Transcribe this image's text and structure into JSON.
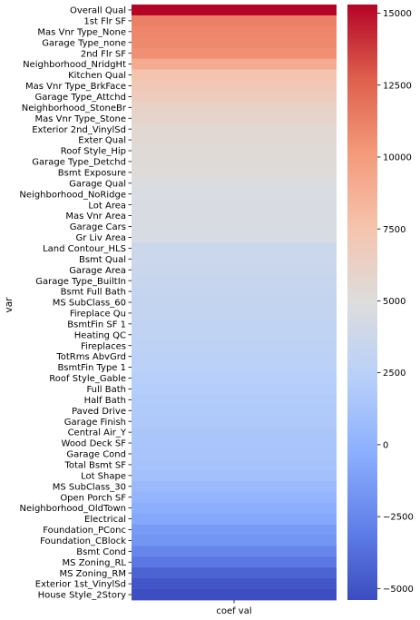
{
  "chart_data": {
    "type": "heatmap",
    "title": "",
    "xlabel": "",
    "ylabel": "var",
    "columns": [
      "coef val"
    ],
    "categories": [
      "Overall Qual",
      "1st Flr SF",
      "Mas Vnr Type_None",
      "Garage Type_none",
      "2nd Flr SF",
      "Neighborhood_NridgHt",
      "Kitchen Qual",
      "Mas Vnr Type_BrkFace",
      "Garage Type_Attchd",
      "Neighborhood_StoneBr",
      "Mas Vnr Type_Stone",
      "Exterior 2nd_VinylSd",
      "Exter Qual",
      "Roof Style_Hip",
      "Garage Type_Detchd",
      "Bsmt Exposure",
      "Garage Qual",
      "Neighborhood_NoRidge",
      "Lot Area",
      "Mas Vnr Area",
      "Garage Cars",
      "Gr Liv Area",
      "Land Contour_HLS",
      "Bsmt Qual",
      "Garage Area",
      "Garage Type_BuiltIn",
      "Bsmt Full Bath",
      "MS SubClass_60",
      "Fireplace Qu",
      "BsmtFin SF 1",
      "Heating QC",
      "Fireplaces",
      "TotRms AbvGrd",
      "BsmtFin Type 1",
      "Roof Style_Gable",
      "Full Bath",
      "Half Bath",
      "Paved Drive",
      "Garage Finish",
      "Central Air_Y",
      "Wood Deck SF",
      "Garage Cond",
      "Total Bsmt SF",
      "Lot Shape",
      "MS SubClass_30",
      "Open Porch SF",
      "Neighborhood_OldTown",
      "Electrical",
      "Foundation_PConc",
      "Foundation_CBlock",
      "Bsmt Cond",
      "MS Zoning_RL",
      "MS Zoning_RM",
      "Exterior 1st_VinylSd",
      "House Style_2Story"
    ],
    "values": [
      15300,
      11300,
      11000,
      10900,
      10600,
      9000,
      7500,
      7100,
      6700,
      6100,
      5900,
      5600,
      5500,
      5300,
      5300,
      5200,
      4800,
      4700,
      4600,
      4600,
      4500,
      4500,
      3700,
      3700,
      3600,
      3500,
      3300,
      3200,
      3100,
      3000,
      2900,
      2800,
      2600,
      2500,
      2300,
      2100,
      2000,
      1900,
      1800,
      1600,
      1500,
      1400,
      1200,
      1100,
      600,
      200,
      -300,
      -700,
      -1400,
      -1700,
      -2600,
      -3300,
      -4300,
      -4900,
      -5300
    ],
    "colorbar": {
      "vmin": -5400,
      "vmax": 15300,
      "ticks": [
        -5000,
        -2500,
        0,
        2500,
        5000,
        7500,
        10000,
        12500,
        15000
      ],
      "colormap": "coolwarm"
    }
  }
}
